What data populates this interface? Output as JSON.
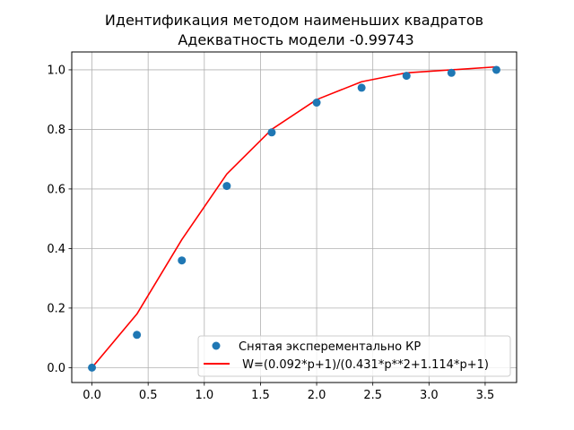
{
  "chart_data": {
    "type": "scatter",
    "title": "Идентификация методом наименьших квадратов",
    "subtitle": "Адекватность модели -0.99743",
    "xlabel": "",
    "ylabel": "",
    "xlim": [
      -0.18,
      3.78
    ],
    "ylim": [
      -0.05,
      1.06
    ],
    "x_ticks": [
      0.0,
      0.5,
      1.0,
      1.5,
      2.0,
      2.5,
      3.0,
      3.5
    ],
    "x_tick_labels": [
      "0.0",
      "0.5",
      "1.0",
      "1.5",
      "2.0",
      "2.5",
      "3.0",
      "3.5"
    ],
    "y_ticks": [
      0.0,
      0.2,
      0.4,
      0.6,
      0.8,
      1.0
    ],
    "y_tick_labels": [
      "0.0",
      "0.2",
      "0.4",
      "0.6",
      "0.8",
      "1.0"
    ],
    "grid": true,
    "legend_position": "bottom-right",
    "series": [
      {
        "name": "Снятая эксперементально КР",
        "kind": "scatter",
        "color": "#1f77b4",
        "x": [
          0.0,
          0.4,
          0.8,
          1.2,
          1.6,
          2.0,
          2.4,
          2.8,
          3.2,
          3.6
        ],
        "y": [
          0.0,
          0.11,
          0.36,
          0.61,
          0.79,
          0.89,
          0.94,
          0.98,
          0.99,
          1.0
        ]
      },
      {
        "name": " W=(0.092*p+1)/(0.431*p**2+1.114*p+1)",
        "kind": "line",
        "color": "#ff0000",
        "x": [
          0.0,
          0.4,
          0.8,
          1.2,
          1.6,
          2.0,
          2.4,
          2.8,
          3.2,
          3.6
        ],
        "y": [
          0.0,
          0.18,
          0.43,
          0.65,
          0.8,
          0.9,
          0.96,
          0.99,
          1.0,
          1.01
        ]
      }
    ]
  }
}
